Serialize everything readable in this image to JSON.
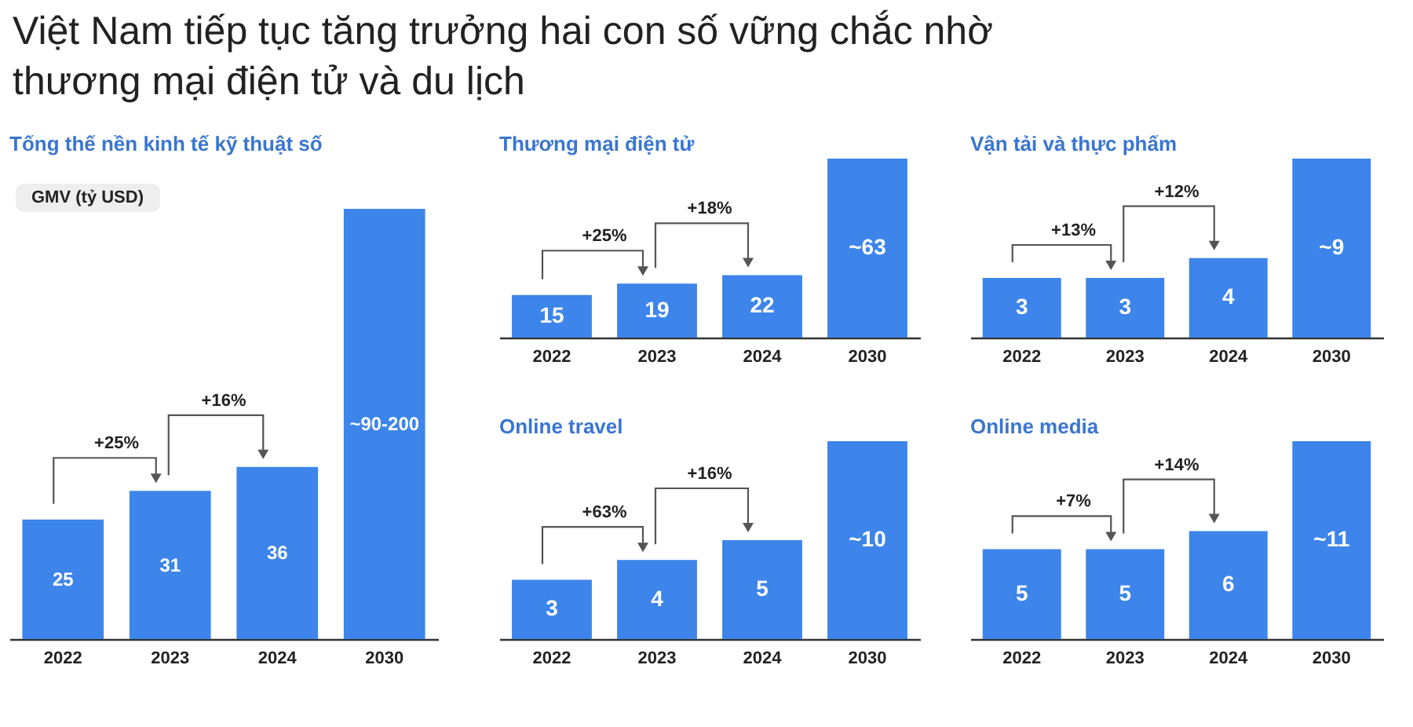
{
  "chart_data": [
    {
      "type": "bar",
      "title": "Việt Nam tiếp tục tăng trưởng hai con số vững chắc nhờ thương mại điện tử và du lịch",
      "subtitle": "Tổng thể nền kinh tế kỹ thuật số",
      "ylabel": "GMV (tỷ USD)",
      "categories": [
        "2022",
        "2023",
        "2024",
        "2030"
      ],
      "values": [
        25,
        31,
        36,
        90
      ],
      "value_labels": [
        "25",
        "31",
        "36",
        "~90-200"
      ],
      "color": "#3d85ea",
      "annotations": [
        "+25%",
        "+16%"
      ]
    },
    {
      "type": "bar",
      "title": "Thương mại điện tử",
      "categories": [
        "2022",
        "2023",
        "2024",
        "2030"
      ],
      "values": [
        15,
        19,
        22,
        63
      ],
      "value_labels": [
        "15",
        "19",
        "22",
        "~63"
      ],
      "color": "#3d85ea",
      "annotations": [
        "+25%",
        "+18%"
      ]
    },
    {
      "type": "bar",
      "title": "Vận tải và thực phẩm",
      "categories": [
        "2022",
        "2023",
        "2024",
        "2030"
      ],
      "values": [
        3,
        3,
        4,
        9
      ],
      "value_labels": [
        "3",
        "3",
        "4",
        "~9"
      ],
      "color": "#3d85ea",
      "annotations": [
        "+13%",
        "+12%"
      ]
    },
    {
      "type": "bar",
      "title": "Online travel",
      "categories": [
        "2022",
        "2023",
        "2024",
        "2030"
      ],
      "values": [
        3,
        4,
        5,
        10
      ],
      "value_labels": [
        "3",
        "4",
        "5",
        "~10"
      ],
      "color": "#3d85ea",
      "annotations": [
        "+63%",
        "+16%"
      ]
    },
    {
      "type": "bar",
      "title": "Online media",
      "categories": [
        "2022",
        "2023",
        "2024",
        "2030"
      ],
      "values": [
        5,
        5,
        6,
        11
      ],
      "value_labels": [
        "5",
        "5",
        "6",
        "~11"
      ],
      "color": "#3d85ea",
      "annotations": [
        "+7%",
        "+14%"
      ]
    }
  ]
}
